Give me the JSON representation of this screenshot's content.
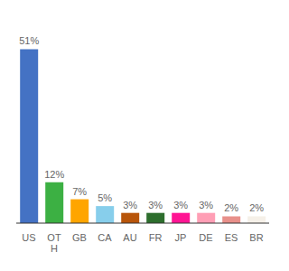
{
  "chart_data": {
    "type": "bar",
    "categories": [
      "US",
      "OT\nH",
      "GB",
      "CA",
      "AU",
      "FR",
      "JP",
      "DE",
      "ES",
      "BR"
    ],
    "values": [
      51,
      12,
      7,
      5,
      3,
      3,
      3,
      3,
      2,
      2
    ],
    "value_labels": [
      "51%",
      "12%",
      "7%",
      "5%",
      "3%",
      "3%",
      "3%",
      "3%",
      "2%",
      "2%"
    ],
    "colors": [
      "#4472c4",
      "#3cb043",
      "#ffa500",
      "#87ceeb",
      "#b8550a",
      "#2d6e2d",
      "#ff1493",
      "#ff9eb5",
      "#e8908a",
      "#f5f0e8"
    ],
    "ylim": [
      0,
      58
    ],
    "data_labels": true,
    "tick_labels": "x",
    "grid": false
  }
}
